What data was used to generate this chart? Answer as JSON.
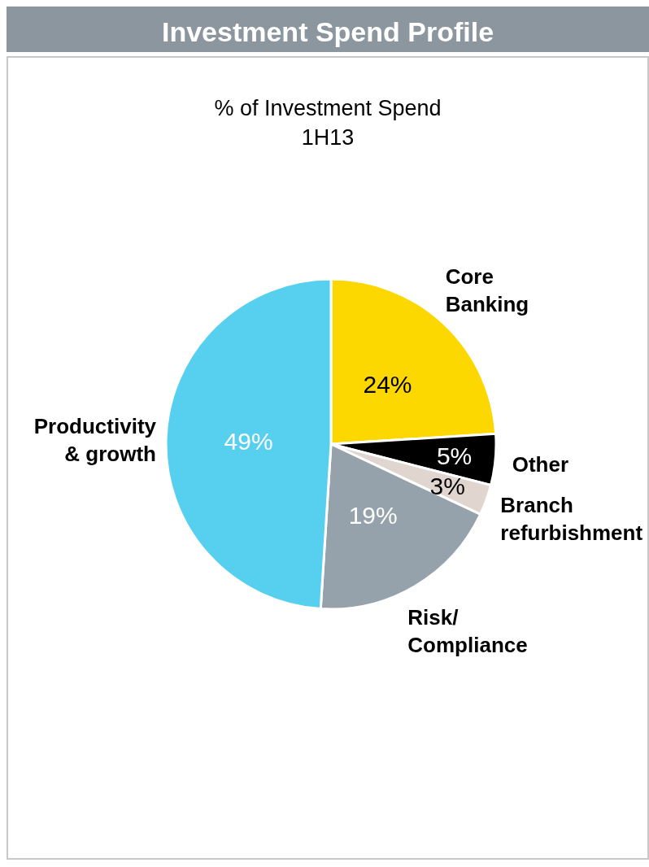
{
  "chart_data": {
    "type": "pie",
    "title": "Investment Spend Profile",
    "subtitle": "% of Investment Spend\n1H13",
    "categories": [
      "Core\nBanking",
      "Other",
      "Branch\nrefurbishment",
      "Risk/\nCompliance",
      "Productivity\n& growth"
    ],
    "values": [
      24,
      5,
      3,
      19,
      49
    ],
    "colors": [
      "#fdd700",
      "#000000",
      "#e0d5cf",
      "#95a2ab",
      "#57d0f0"
    ],
    "value_labels": [
      "24%",
      "5%",
      "3%",
      "19%",
      "49%"
    ]
  }
}
